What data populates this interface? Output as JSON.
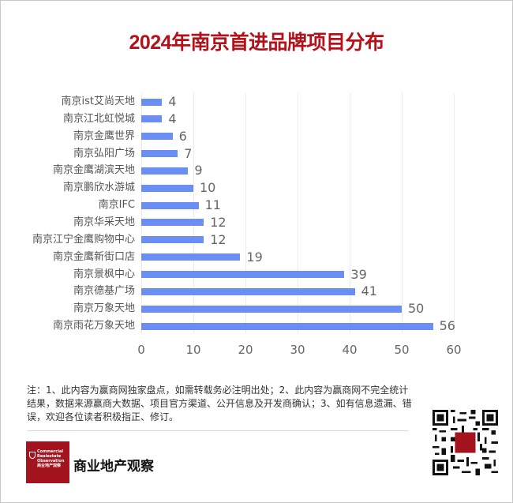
{
  "title": "2024年南京首进品牌项目分布",
  "chart_data": {
    "type": "bar",
    "orientation": "horizontal",
    "title": "2024年南京首进品牌项目分布",
    "xlabel": "",
    "ylabel": "",
    "xlim": [
      0,
      60
    ],
    "xticks": [
      "0",
      "10",
      "20",
      "30",
      "40",
      "50",
      "60"
    ],
    "grid": true,
    "legend": null,
    "data_labels": true,
    "bar_color": "#6b8ef5",
    "categories": [
      "南京ist艾尚天地",
      "南京江北虹悦城",
      "南京金鹰世界",
      "南京弘阳广场",
      "南京金鹰湖滨天地",
      "南京鹏欣水游城",
      "南京IFC",
      "南京华采天地",
      "南京江宁金鹰购物中心",
      "南京金鹰新街口店",
      "南京景枫中心",
      "南京德基广场",
      "南京万象天地",
      "南京雨花万象天地"
    ],
    "values": [
      4,
      4,
      6,
      7,
      9,
      10,
      11,
      12,
      12,
      19,
      39,
      41,
      50,
      56
    ],
    "value_labels": [
      "4",
      "4",
      "6",
      "7",
      "9",
      "10",
      "11",
      "12",
      "12",
      "19",
      "39",
      "41",
      "50",
      "56"
    ]
  },
  "note": "注：1、此内容为赢商网独家盘点，如需转载务必注明出处；2、此内容为赢商网不完全统计结果，数据来源赢商大数据、项目官方渠道、公开信息及开发商确认；3、如有信息遗漏、错误，欢迎各位读者积极指正、修订。",
  "footer": {
    "logo_text": [
      "Commercial",
      "Realestate",
      "Observation",
      "商业地产观察"
    ],
    "brand_name": "商业地产观察",
    "qr_label": "qr-code"
  },
  "colors": {
    "title": "#b3121b",
    "bar": "#6b8ef5",
    "logo_bg": "#a3141f"
  }
}
